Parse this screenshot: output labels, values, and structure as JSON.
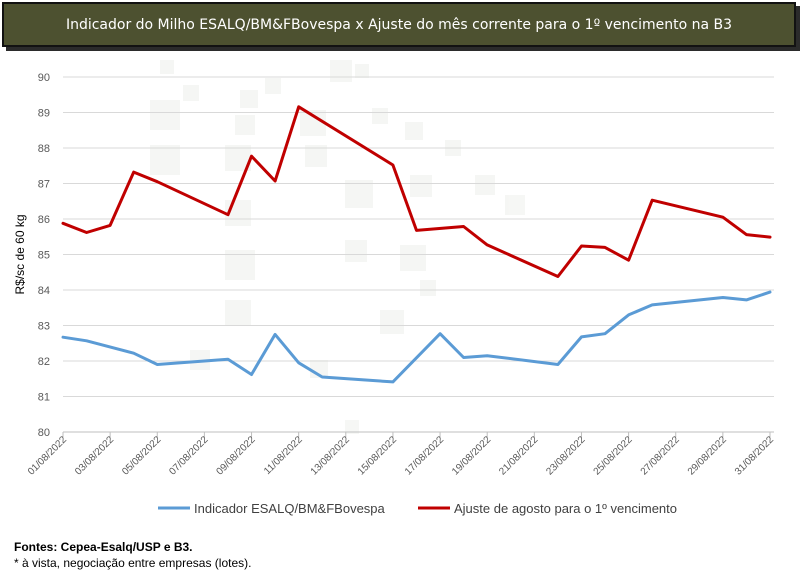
{
  "title": "Indicador do Milho ESALQ/BM&FBovespa x Ajuste do mês corrente para o 1º vencimento na B3",
  "footer": {
    "sources_label": "Fontes",
    "sources_text": ": Cepea-Esalq/USP e B3.",
    "note": "*  à vista, negociação entre empresas (lotes)."
  },
  "colors": {
    "banner_bg": "#4d5130",
    "series_indicator": "#5b9bd5",
    "series_ajuste": "#c00000",
    "grid": "#d9d9d9"
  },
  "chart_data": {
    "type": "line",
    "ylabel": "R$/sc de 60 kg",
    "xlabel": "",
    "ylim": [
      80,
      90
    ],
    "yticks": [
      80,
      81,
      82,
      83,
      84,
      85,
      86,
      87,
      88,
      89,
      90
    ],
    "xticks": [
      "01/08/2022",
      "03/08/2022",
      "05/08/2022",
      "07/08/2022",
      "09/08/2022",
      "11/08/2022",
      "13/08/2022",
      "15/08/2022",
      "17/08/2022",
      "19/08/2022",
      "21/08/2022",
      "23/08/2022",
      "25/08/2022",
      "27/08/2022",
      "29/08/2022",
      "31/08/2022"
    ],
    "grid": "horizontal",
    "legend": "bottom",
    "series": [
      {
        "name": "Indicador ESALQ/BM&FBovespa",
        "color": "#5b9bd5",
        "points": [
          [
            "01/08/2022",
            82.67
          ],
          [
            "02/08/2022",
            82.57
          ],
          [
            "04/08/2022",
            82.22
          ],
          [
            "05/08/2022",
            81.9
          ],
          [
            "08/08/2022",
            82.05
          ],
          [
            "09/08/2022",
            81.62
          ],
          [
            "10/08/2022",
            82.75
          ],
          [
            "11/08/2022",
            81.95
          ],
          [
            "12/08/2022",
            81.55
          ],
          [
            "15/08/2022",
            81.41
          ],
          [
            "17/08/2022",
            82.77
          ],
          [
            "18/08/2022",
            82.1
          ],
          [
            "19/08/2022",
            82.15
          ],
          [
            "22/08/2022",
            81.9
          ],
          [
            "23/08/2022",
            82.68
          ],
          [
            "24/08/2022",
            82.77
          ],
          [
            "25/08/2022",
            83.3
          ],
          [
            "26/08/2022",
            83.58
          ],
          [
            "29/08/2022",
            83.79
          ],
          [
            "30/08/2022",
            83.72
          ],
          [
            "31/08/2022",
            83.94
          ]
        ]
      },
      {
        "name": "Ajuste de agosto para o 1º vencimento",
        "color": "#c00000",
        "points": [
          [
            "01/08/2022",
            85.88
          ],
          [
            "02/08/2022",
            85.62
          ],
          [
            "03/08/2022",
            85.82
          ],
          [
            "04/08/2022",
            87.32
          ],
          [
            "05/08/2022",
            87.05
          ],
          [
            "08/08/2022",
            86.12
          ],
          [
            "09/08/2022",
            87.77
          ],
          [
            "10/08/2022",
            87.07
          ],
          [
            "11/08/2022",
            89.16
          ],
          [
            "15/08/2022",
            87.52
          ],
          [
            "16/08/2022",
            85.68
          ],
          [
            "18/08/2022",
            85.79
          ],
          [
            "19/08/2022",
            85.27
          ],
          [
            "22/08/2022",
            84.38
          ],
          [
            "23/08/2022",
            85.24
          ],
          [
            "24/08/2022",
            85.2
          ],
          [
            "25/08/2022",
            84.84
          ],
          [
            "26/08/2022",
            86.53
          ],
          [
            "29/08/2022",
            86.05
          ],
          [
            "30/08/2022",
            85.56
          ],
          [
            "31/08/2022",
            85.49
          ]
        ]
      }
    ]
  }
}
